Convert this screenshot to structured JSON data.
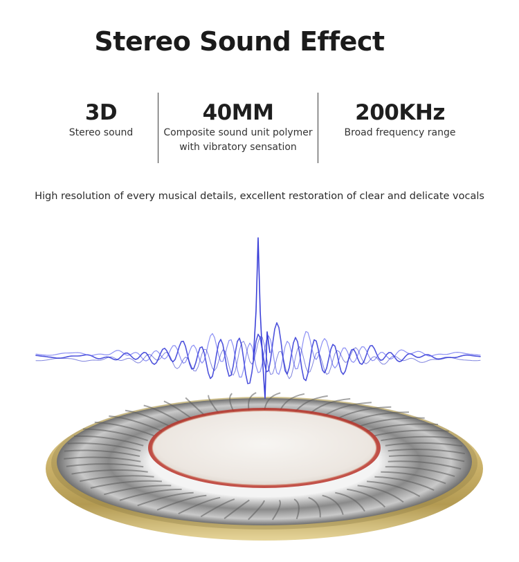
{
  "title": "Stereo Sound Effect",
  "features": [
    {
      "headline": "3D",
      "lines": [
        "Stereo sound"
      ]
    },
    {
      "headline": "40MM",
      "lines": [
        "Composite sound unit polymer",
        "with vibratory sensation"
      ]
    },
    {
      "headline": "200KHz",
      "lines": [
        "Broad frequency range"
      ]
    }
  ],
  "tagline": "High resolution of every musical details, excellent restoration of clear and delicate vocals",
  "image": {
    "subject": "40mm speaker driver with sound wave",
    "colors": {
      "ring_gold": "#c8b06a",
      "wave_blue": "#3a3fd8",
      "coil_red": "#b8342a"
    }
  }
}
